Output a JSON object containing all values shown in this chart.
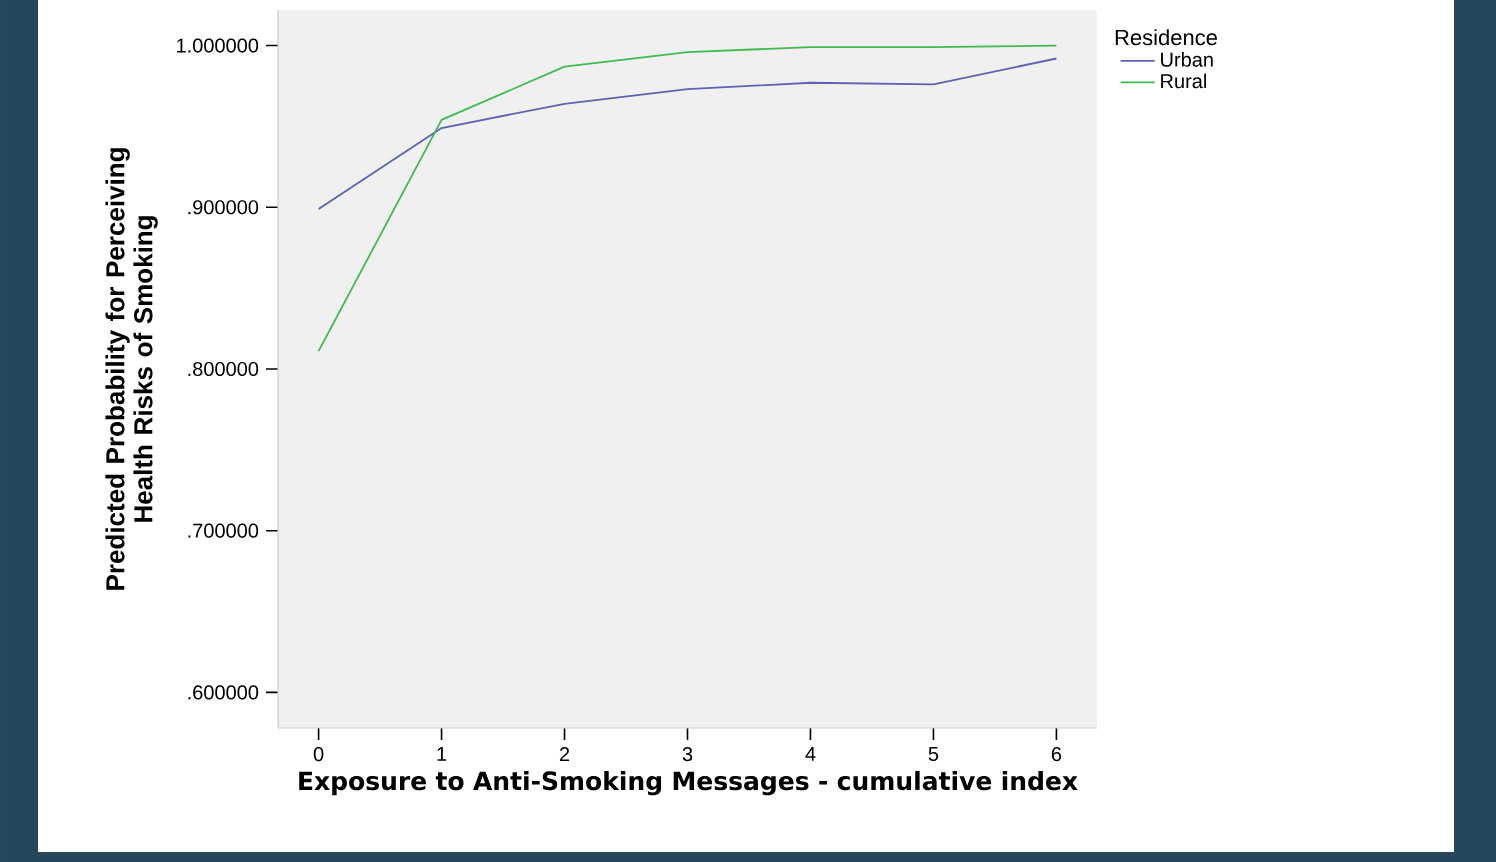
{
  "chart_data": {
    "type": "line",
    "xlabel": "Exposure to Anti-Smoking Messages - cumulative index",
    "ylabel": "Predicted Probability for Perceiving Health Risks of Smoking",
    "legend_title": "Residence",
    "x": [
      0,
      1,
      2,
      3,
      4,
      5,
      6
    ],
    "series": [
      {
        "name": "Urban",
        "color": "#5a63b4",
        "values": [
          0.899,
          0.949,
          0.964,
          0.973,
          0.977,
          0.976,
          0.992
        ]
      },
      {
        "name": "Rural",
        "color": "#3fba4f",
        "values": [
          0.811,
          0.954,
          0.987,
          0.996,
          0.999,
          0.999,
          1.0
        ]
      }
    ],
    "xlim": [
      -0.33,
      6.33
    ],
    "ylim": [
      0.578,
      1.022
    ],
    "xticks": [
      0,
      1,
      2,
      3,
      4,
      5,
      6
    ],
    "yticks": [
      {
        "value": 0.6,
        "label": ".600000"
      },
      {
        "value": 0.7,
        "label": ".700000"
      },
      {
        "value": 0.8,
        "label": ".800000"
      },
      {
        "value": 0.9,
        "label": ".900000"
      },
      {
        "value": 1.0,
        "label": "1.000000"
      }
    ],
    "legend": "top right",
    "marker": "none",
    "line_style": "solid",
    "grid": false
  }
}
